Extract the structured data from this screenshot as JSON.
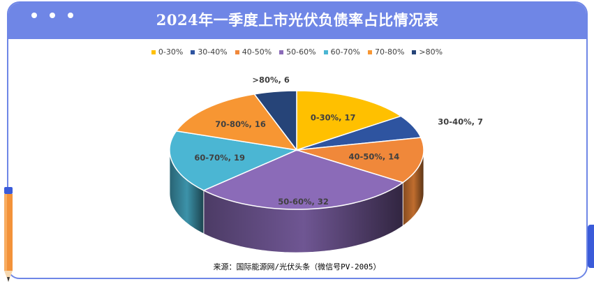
{
  "title": "2024年一季度上市光伏负债率占比情况表",
  "source": "来源：国际能源网/光伏头条（微信号PV-2005）",
  "colors": {
    "frame": "#6f86e6",
    "title_text": "#ffffff"
  },
  "chart_data": {
    "type": "pie",
    "title": "2024年一季度上市光伏负债率占比情况表",
    "legend_position": "top",
    "categories": [
      "0-30%",
      "30-40%",
      "40-50%",
      "50-60%",
      "60-70%",
      "70-80%",
      ">80%"
    ],
    "values": [
      17,
      7,
      14,
      32,
      19,
      16,
      6
    ],
    "colors": [
      "#ffc000",
      "#2e54a0",
      "#f0883a",
      "#8b6bb8",
      "#4bb6d3",
      "#f79633",
      "#264478"
    ],
    "data_labels": [
      "0-30%, 17",
      "30-40%, 7",
      "40-50%, 14",
      "50-60%, 32",
      "60-70%, 19",
      "70-80%, 16",
      ">80%, 6"
    ]
  }
}
